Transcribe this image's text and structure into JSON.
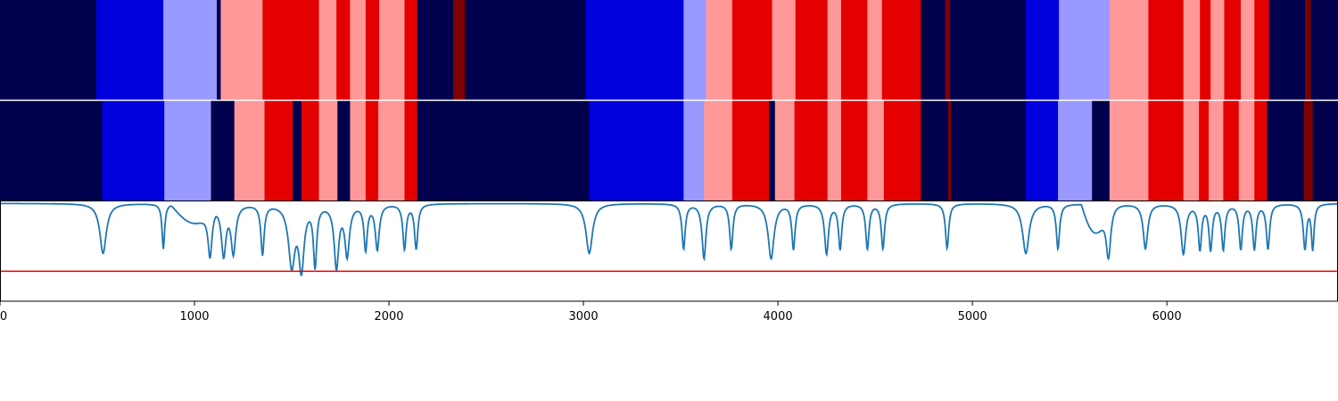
{
  "chart_data": {
    "type": "heatmap",
    "title": "",
    "xlabel": "",
    "ylabel": "",
    "xlim": [
      0,
      6880
    ],
    "xticks": [
      0,
      1000,
      2000,
      3000,
      4000,
      5000,
      6000
    ],
    "grid": false,
    "legend": "none",
    "palette": {
      "0": "#00004c",
      "1": "#0000dd",
      "2": "#9999ff",
      "3": "#ff9999",
      "4": "#e50000",
      "5": "#7f0000"
    },
    "tracks": [
      {
        "segments": [
          [
            0,
            495,
            0
          ],
          [
            495,
            840,
            1
          ],
          [
            840,
            1115,
            2
          ],
          [
            1115,
            1135,
            0
          ],
          [
            1135,
            1350,
            3
          ],
          [
            1350,
            1640,
            4
          ],
          [
            1640,
            1730,
            3
          ],
          [
            1730,
            1800,
            4
          ],
          [
            1800,
            1880,
            3
          ],
          [
            1880,
            1950,
            4
          ],
          [
            1950,
            2080,
            3
          ],
          [
            2080,
            2145,
            4
          ],
          [
            2145,
            2330,
            0
          ],
          [
            2330,
            2390,
            5
          ],
          [
            2390,
            3010,
            0
          ],
          [
            3010,
            3515,
            1
          ],
          [
            3515,
            3630,
            2
          ],
          [
            3630,
            3765,
            3
          ],
          [
            3765,
            3970,
            4
          ],
          [
            3970,
            4090,
            3
          ],
          [
            4090,
            4255,
            4
          ],
          [
            4255,
            4325,
            3
          ],
          [
            4325,
            4460,
            4
          ],
          [
            4460,
            4535,
            3
          ],
          [
            4535,
            4735,
            4
          ],
          [
            4735,
            4860,
            0
          ],
          [
            4860,
            4885,
            5
          ],
          [
            4885,
            5275,
            0
          ],
          [
            5275,
            5445,
            1
          ],
          [
            5445,
            5705,
            2
          ],
          [
            5705,
            5905,
            3
          ],
          [
            5905,
            6085,
            4
          ],
          [
            6085,
            6170,
            3
          ],
          [
            6170,
            6225,
            4
          ],
          [
            6225,
            6295,
            3
          ],
          [
            6295,
            6380,
            4
          ],
          [
            6380,
            6450,
            3
          ],
          [
            6450,
            6525,
            4
          ],
          [
            6525,
            6710,
            0
          ],
          [
            6710,
            6740,
            5
          ],
          [
            6740,
            6880,
            0
          ]
        ]
      },
      {
        "segments": [
          [
            0,
            525,
            0
          ],
          [
            525,
            845,
            1
          ],
          [
            845,
            1085,
            2
          ],
          [
            1085,
            1205,
            0
          ],
          [
            1205,
            1360,
            3
          ],
          [
            1360,
            1505,
            4
          ],
          [
            1505,
            1550,
            0
          ],
          [
            1550,
            1640,
            4
          ],
          [
            1640,
            1735,
            3
          ],
          [
            1735,
            1800,
            0
          ],
          [
            1800,
            1880,
            3
          ],
          [
            1880,
            1945,
            4
          ],
          [
            1945,
            2080,
            3
          ],
          [
            2080,
            2145,
            4
          ],
          [
            2145,
            3030,
            0
          ],
          [
            3030,
            3515,
            1
          ],
          [
            3515,
            3620,
            2
          ],
          [
            3620,
            3765,
            3
          ],
          [
            3765,
            3955,
            4
          ],
          [
            3955,
            3985,
            0
          ],
          [
            3985,
            4085,
            3
          ],
          [
            4085,
            4255,
            4
          ],
          [
            4255,
            4325,
            3
          ],
          [
            4325,
            4460,
            4
          ],
          [
            4460,
            4545,
            3
          ],
          [
            4545,
            4735,
            4
          ],
          [
            4735,
            4875,
            0
          ],
          [
            4875,
            4890,
            5
          ],
          [
            4890,
            5275,
            0
          ],
          [
            5275,
            5440,
            1
          ],
          [
            5440,
            5615,
            2
          ],
          [
            5615,
            5705,
            0
          ],
          [
            5705,
            5905,
            3
          ],
          [
            5905,
            6085,
            4
          ],
          [
            6085,
            6165,
            3
          ],
          [
            6165,
            6215,
            4
          ],
          [
            6215,
            6290,
            3
          ],
          [
            6290,
            6370,
            4
          ],
          [
            6370,
            6450,
            3
          ],
          [
            6450,
            6515,
            4
          ],
          [
            6515,
            6705,
            0
          ],
          [
            6705,
            6750,
            5
          ],
          [
            6750,
            6880,
            0
          ]
        ]
      }
    ],
    "line": {
      "color": "#1f77b4",
      "ylim": [
        0,
        1
      ],
      "baseline": 0.98,
      "dips": [
        [
          530,
          0.5,
          20
        ],
        [
          840,
          0.45,
          8
        ],
        [
          1080,
          0.45,
          12
        ],
        [
          1150,
          0.5,
          14
        ],
        [
          1200,
          0.48,
          14
        ],
        [
          1350,
          0.5,
          10
        ],
        [
          1500,
          0.6,
          20
        ],
        [
          1550,
          0.62,
          16
        ],
        [
          1620,
          0.6,
          10
        ],
        [
          1730,
          0.62,
          14
        ],
        [
          1785,
          0.5,
          14
        ],
        [
          1880,
          0.45,
          10
        ],
        [
          1940,
          0.45,
          12
        ],
        [
          2080,
          0.45,
          10
        ],
        [
          2140,
          0.45,
          10
        ],
        [
          3030,
          0.5,
          20
        ],
        [
          3515,
          0.45,
          10
        ],
        [
          3620,
          0.55,
          12
        ],
        [
          3760,
          0.45,
          10
        ],
        [
          3965,
          0.55,
          18
        ],
        [
          4080,
          0.45,
          10
        ],
        [
          4250,
          0.5,
          12
        ],
        [
          4320,
          0.45,
          10
        ],
        [
          4460,
          0.45,
          10
        ],
        [
          4540,
          0.45,
          10
        ],
        [
          4870,
          0.45,
          10
        ],
        [
          5275,
          0.5,
          20
        ],
        [
          5440,
          0.45,
          10
        ],
        [
          5700,
          0.55,
          14
        ],
        [
          5890,
          0.45,
          14
        ],
        [
          6085,
          0.5,
          14
        ],
        [
          6170,
          0.45,
          10
        ],
        [
          6225,
          0.45,
          10
        ],
        [
          6290,
          0.45,
          10
        ],
        [
          6380,
          0.45,
          10
        ],
        [
          6450,
          0.45,
          10
        ],
        [
          6520,
          0.45,
          10
        ],
        [
          6710,
          0.45,
          10
        ],
        [
          6750,
          0.45,
          8
        ]
      ],
      "slopes": [
        [
          880,
          1110,
          0.2
        ],
        [
          5560,
          5700,
          0.3
        ]
      ]
    },
    "threshold": {
      "value": 0.3,
      "color": "#e50000"
    }
  }
}
